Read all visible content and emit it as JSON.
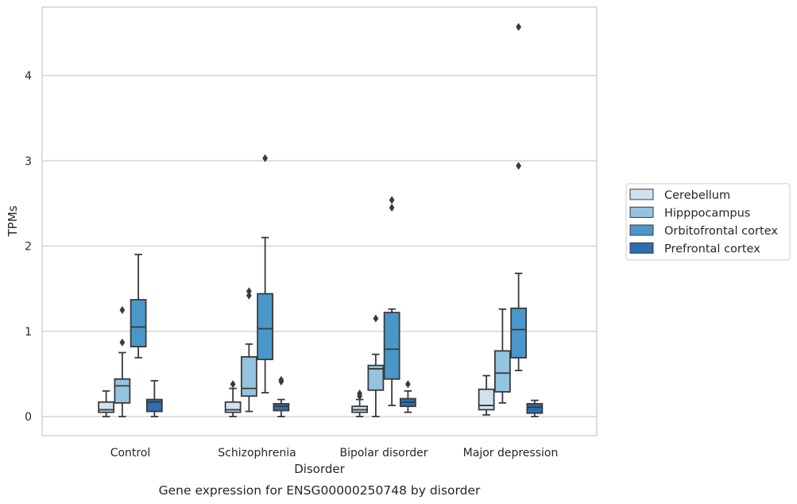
{
  "chart_data": {
    "type": "box",
    "title": "",
    "caption": "Gene expression for ENSG00000250748 by disorder",
    "xlabel": "Disorder",
    "ylabel": "TPMs",
    "ylim": [
      -0.22,
      4.8
    ],
    "yticks": [
      0,
      1,
      2,
      3,
      4
    ],
    "grid": "horizontal",
    "legend_position": "right",
    "categories": [
      "Control",
      "Schizophrenia",
      "Bipolar disorder",
      "Major depression"
    ],
    "series": [
      {
        "name": "Cerebellum",
        "color": "#d0e1f2",
        "boxes": [
          {
            "whisker_low": 0.0,
            "q1": 0.05,
            "median": 0.08,
            "q3": 0.17,
            "whisker_high": 0.3,
            "outliers": []
          },
          {
            "whisker_low": 0.0,
            "q1": 0.05,
            "median": 0.08,
            "q3": 0.17,
            "whisker_high": 0.33,
            "outliers": [
              0.38
            ]
          },
          {
            "whisker_low": 0.0,
            "q1": 0.05,
            "median": 0.08,
            "q3": 0.12,
            "whisker_high": 0.2,
            "outliers": [
              0.24,
              0.27
            ]
          },
          {
            "whisker_low": 0.02,
            "q1": 0.08,
            "median": 0.13,
            "q3": 0.32,
            "whisker_high": 0.48,
            "outliers": []
          }
        ]
      },
      {
        "name": "Hipppocampus",
        "color": "#94c4df",
        "boxes": [
          {
            "whisker_low": 0.0,
            "q1": 0.16,
            "median": 0.36,
            "q3": 0.44,
            "whisker_high": 0.75,
            "outliers": [
              0.87,
              1.25
            ]
          },
          {
            "whisker_low": 0.06,
            "q1": 0.24,
            "median": 0.33,
            "q3": 0.7,
            "whisker_high": 0.85,
            "outliers": [
              1.42,
              1.47
            ]
          },
          {
            "whisker_low": 0.0,
            "q1": 0.31,
            "median": 0.56,
            "q3": 0.6,
            "whisker_high": 0.73,
            "outliers": [
              1.15
            ]
          },
          {
            "whisker_low": 0.16,
            "q1": 0.29,
            "median": 0.51,
            "q3": 0.77,
            "whisker_high": 1.26,
            "outliers": []
          }
        ]
      },
      {
        "name": "Orbitofrontal cortex",
        "color": "#4a98c9",
        "boxes": [
          {
            "whisker_low": 0.69,
            "q1": 0.82,
            "median": 1.05,
            "q3": 1.37,
            "whisker_high": 1.9,
            "outliers": []
          },
          {
            "whisker_low": 0.28,
            "q1": 0.67,
            "median": 1.03,
            "q3": 1.44,
            "whisker_high": 2.1,
            "outliers": [
              3.03
            ]
          },
          {
            "whisker_low": 0.13,
            "q1": 0.44,
            "median": 0.79,
            "q3": 1.22,
            "whisker_high": 1.26,
            "outliers": [
              2.45,
              2.54
            ]
          },
          {
            "whisker_low": 0.54,
            "q1": 0.69,
            "median": 1.02,
            "q3": 1.27,
            "whisker_high": 1.68,
            "outliers": [
              2.94,
              4.57
            ]
          }
        ]
      },
      {
        "name": "Prefrontal cortex",
        "color": "#2b6fb0",
        "boxes": [
          {
            "whisker_low": 0.0,
            "q1": 0.06,
            "median": 0.17,
            "q3": 0.2,
            "whisker_high": 0.42,
            "outliers": []
          },
          {
            "whisker_low": 0.0,
            "q1": 0.07,
            "median": 0.12,
            "q3": 0.15,
            "whisker_high": 0.2,
            "outliers": [
              0.41,
              0.43
            ]
          },
          {
            "whisker_low": 0.05,
            "q1": 0.12,
            "median": 0.17,
            "q3": 0.21,
            "whisker_high": 0.3,
            "outliers": [
              0.38
            ]
          },
          {
            "whisker_low": 0.0,
            "q1": 0.04,
            "median": 0.11,
            "q3": 0.15,
            "whisker_high": 0.19,
            "outliers": []
          }
        ]
      }
    ]
  }
}
